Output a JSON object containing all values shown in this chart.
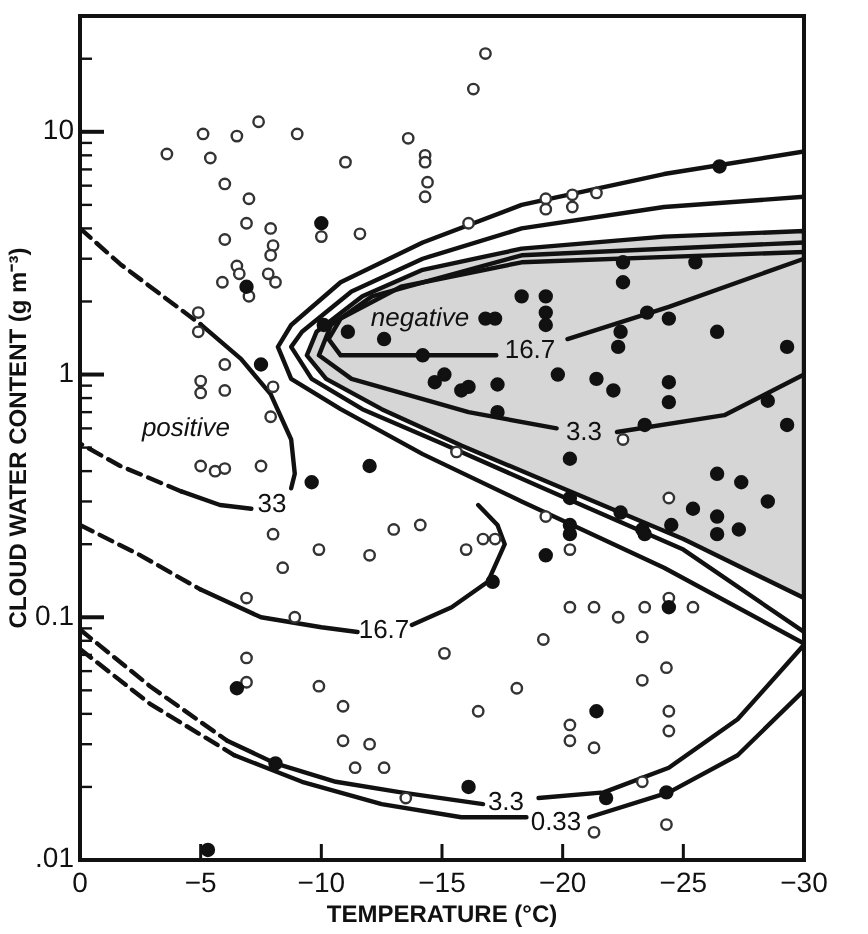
{
  "chart_data": {
    "type": "scatter",
    "xlabel": "TEMPERATURE (°C)",
    "ylabel": "CLOUD WATER CONTENT (g m⁻³)",
    "log": "y",
    "xlim": [
      0,
      -30
    ],
    "ylim": [
      0.01,
      30
    ],
    "xticks": [
      0,
      {
        "value": -5,
        "label": "−5"
      },
      {
        "value": -10,
        "label": "−10"
      },
      {
        "value": -15,
        "label": "−15"
      },
      {
        "value": -20,
        "label": "−20"
      },
      {
        "value": -25,
        "label": "−25"
      },
      {
        "value": -30,
        "label": "−30"
      }
    ],
    "yticks": [
      {
        "value": 0.01,
        "label": ".01"
      },
      {
        "value": 0.02,
        "label": null
      },
      {
        "value": 0.03,
        "label": null
      },
      {
        "value": 0.04,
        "label": null
      },
      {
        "value": 0.05,
        "label": null
      },
      {
        "value": 0.06,
        "label": null
      },
      {
        "value": 0.07,
        "label": null
      },
      {
        "value": 0.08,
        "label": null
      },
      {
        "value": 0.09,
        "label": null
      },
      {
        "value": 0.1,
        "label": "0.1"
      },
      {
        "value": 0.2,
        "label": null
      },
      {
        "value": 0.3,
        "label": null
      },
      {
        "value": 0.4,
        "label": null
      },
      {
        "value": 0.5,
        "label": null
      },
      {
        "value": 0.6,
        "label": null
      },
      {
        "value": 0.7,
        "label": null
      },
      {
        "value": 0.8,
        "label": null
      },
      {
        "value": 0.9,
        "label": null
      },
      1,
      {
        "value": 2,
        "label": null
      },
      {
        "value": 3,
        "label": null
      },
      {
        "value": 4,
        "label": null
      },
      {
        "value": 5,
        "label": null
      },
      {
        "value": 6,
        "label": null
      },
      {
        "value": 7,
        "label": null
      },
      {
        "value": 8,
        "label": null
      },
      {
        "value": 9,
        "label": null
      },
      10,
      {
        "value": 20,
        "label": null
      }
    ],
    "series": [
      {
        "type": "area",
        "color": "#d6d6d6",
        "x": [
          -30,
          -24.2,
          -18.3,
          -14.2,
          -11.7,
          -9.8,
          -9.4,
          -10.2,
          -12.5,
          -15.8,
          -20,
          -25,
          -30
        ],
        "values": [
          3.9,
          3.7,
          3.3,
          2.7,
          2.1,
          1.5,
          1.2,
          0.96,
          0.72,
          0.51,
          0.34,
          0.21,
          0.12
        ]
      },
      {
        "type": "line",
        "color": "#111111",
        "line_style": "solid",
        "x": [
          -30,
          -24.2,
          -18.3,
          -14.2,
          -10.8,
          -8.75,
          -8.2,
          -8.75,
          -10.8,
          -14.2,
          -18.3,
          -24.2,
          -30
        ],
        "values": [
          8.3,
          6.7,
          5.0,
          3.5,
          2.4,
          1.6,
          1.3,
          0.96,
          0.72,
          0.47,
          0.3,
          0.16,
          0.078
        ]
      },
      {
        "type": "line",
        "color": "#111111",
        "line_style": "solid",
        "x": [
          -30,
          -24.2,
          -18.3,
          -14.2,
          -11.25,
          -9.2,
          -8.75,
          -9.6,
          -11.7,
          -15,
          -19.2,
          -25,
          -30
        ],
        "values": [
          5.4,
          4.9,
          4.0,
          3.0,
          2.2,
          1.5,
          1.3,
          0.96,
          0.72,
          0.52,
          0.34,
          0.19,
          0.087
        ]
      },
      {
        "type": "line",
        "color": "#111111",
        "line_style": "solid",
        "x": [
          -30,
          -18.3,
          -12.1,
          -10.4,
          -9.9,
          -11.25,
          -13.3,
          -16.1,
          -19.75
        ],
        "values": [
          3.5,
          3.1,
          2.1,
          1.6,
          1.2,
          0.96,
          0.84,
          0.7,
          0.6
        ]
      },
      {
        "type": "line",
        "color": "#111111",
        "line_style": "solid",
        "x": [
          -22.25,
          -26.7,
          -30
        ],
        "values": [
          0.58,
          0.68,
          1.0
        ]
      },
      {
        "type": "line",
        "color": "#111111",
        "line_style": "solid",
        "x": [
          -30,
          -18.3,
          -13.3,
          -10.8,
          -10.3,
          -10.8,
          -13.3,
          -17.25
        ],
        "values": [
          3.2,
          2.9,
          2.3,
          1.7,
          1.4,
          1.2,
          1.2,
          1.2
        ]
      },
      {
        "type": "line",
        "color": "#111111",
        "line_style": "solid",
        "x": [
          -20.2,
          -24.4,
          -30
        ],
        "values": [
          1.4,
          1.9,
          3.0
        ]
      },
      {
        "type": "line",
        "color": "#111111",
        "line_style": "dashed",
        "x": [
          0,
          -1.67,
          -3.33,
          -5
        ],
        "values": [
          4.0,
          2.85,
          2.14,
          1.61
        ]
      },
      {
        "type": "line",
        "color": "#111111",
        "line_style": "solid",
        "x": [
          -5,
          -6.67,
          -7.9,
          -8.75,
          -8.9,
          -8.75
        ],
        "values": [
          1.61,
          1.16,
          0.83,
          0.54,
          0.39,
          0.34
        ]
      },
      {
        "type": "line",
        "color": "#111111",
        "line_style": "solid",
        "x": [
          -7.1,
          -5.8,
          -4.2
        ],
        "values": [
          0.28,
          0.29,
          0.33
        ]
      },
      {
        "type": "line",
        "color": "#111111",
        "line_style": "dashed",
        "x": [
          -4.2,
          -1.67,
          0
        ],
        "values": [
          0.33,
          0.42,
          0.52
        ]
      },
      {
        "type": "line",
        "color": "#111111",
        "line_style": "dashed",
        "x": [
          0,
          -2.5,
          -5
        ],
        "values": [
          0.24,
          0.18,
          0.13
        ]
      },
      {
        "type": "line",
        "color": "#111111",
        "line_style": "solid",
        "x": [
          -5,
          -7.5,
          -10,
          -11.5
        ],
        "values": [
          0.13,
          0.1,
          0.091,
          0.087
        ]
      },
      {
        "type": "line",
        "color": "#111111",
        "line_style": "solid",
        "x": [
          -13.75,
          -15.4,
          -16.9,
          -17.6,
          -17.3,
          -16.5
        ],
        "values": [
          0.093,
          0.11,
          0.14,
          0.2,
          0.24,
          0.29
        ]
      },
      {
        "type": "line",
        "color": "#111111",
        "line_style": "dashed",
        "x": [
          0,
          -2.9,
          -6.1
        ],
        "values": [
          0.089,
          0.052,
          0.031
        ]
      },
      {
        "type": "line",
        "color": "#111111",
        "line_style": "solid",
        "x": [
          -6.1,
          -8.1,
          -10.6,
          -13.3,
          -16.7
        ],
        "values": [
          0.031,
          0.025,
          0.021,
          0.019,
          0.017
        ]
      },
      {
        "type": "line",
        "color": "#111111",
        "line_style": "solid",
        "x": [
          -19,
          -21.7,
          -24.4,
          -27.25,
          -30
        ],
        "values": [
          0.018,
          0.019,
          0.024,
          0.038,
          0.077
        ]
      },
      {
        "type": "line",
        "color": "#111111",
        "line_style": "dashed",
        "x": [
          0,
          -2.9,
          -6.4
        ],
        "values": [
          0.074,
          0.044,
          0.027
        ]
      },
      {
        "type": "line",
        "color": "#111111",
        "line_style": "solid",
        "x": [
          -6.4,
          -9.2,
          -12.5,
          -15.8,
          -18.5
        ],
        "values": [
          0.027,
          0.021,
          0.017,
          0.015,
          0.015
        ]
      },
      {
        "type": "line",
        "color": "#111111",
        "line_style": "solid",
        "x": [
          -21.1,
          -24.4,
          -27.25,
          -30
        ],
        "values": [
          0.015,
          0.019,
          0.027,
          0.05
        ]
      },
      {
        "color": "#333333",
        "marker": "circle",
        "x": [
          -3.6,
          -5.1,
          -6.5,
          -7.4,
          -9,
          -5.4,
          -6,
          -7,
          -6.9,
          -7.9,
          -6,
          -8,
          -7.9,
          -6.5,
          -5.9,
          -6.6,
          -7.8,
          -8.1,
          -7,
          -11,
          -10,
          -11.6,
          -4.9,
          -4.9,
          -6,
          -5,
          -5,
          -6,
          -8,
          -7.9,
          -5,
          -5.6,
          -6,
          -7.5,
          -16.8,
          -16.3,
          -13.6,
          -14.3,
          -14.3,
          -14.4,
          -14.3,
          -19.3,
          -19.3,
          -20.4,
          -20.4,
          -21.4,
          -16.1,
          -22.5,
          -15.6,
          -14.1,
          -16,
          -16.7,
          -17.2,
          -19.3,
          -24.4,
          -20.3,
          -24.4,
          -25.4,
          -20.3,
          -21.3,
          -22.3,
          -23.4,
          -19.2,
          -23.3,
          -15.1,
          -24.3,
          -23.3,
          -18.1,
          -16.5,
          -24.4,
          -24.4,
          -20.3,
          -20.3,
          -21.3,
          -23.3,
          -21.3,
          -24.3,
          -8,
          -8.4,
          -9.9,
          -12,
          -13,
          -6.9,
          -8.9,
          -6.9,
          -6.9,
          -9.9,
          -10.9,
          -10.9,
          -12,
          -11.4,
          -12.6,
          -13.5
        ],
        "values": [
          8.1,
          9.8,
          9.6,
          11,
          9.8,
          7.8,
          6.1,
          5.3,
          4.2,
          4.0,
          3.6,
          3.4,
          3.1,
          2.8,
          2.4,
          2.6,
          2.6,
          2.4,
          2.1,
          7.5,
          3.7,
          3.8,
          1.8,
          1.5,
          1.1,
          0.94,
          0.84,
          0.86,
          0.89,
          0.67,
          0.42,
          0.4,
          0.41,
          0.42,
          21,
          15,
          9.4,
          8.0,
          7.5,
          6.2,
          5.4,
          5.3,
          4.8,
          5.5,
          4.9,
          5.6,
          4.2,
          0.54,
          0.48,
          0.24,
          0.19,
          0.21,
          0.21,
          0.26,
          0.31,
          0.19,
          0.12,
          0.11,
          0.11,
          0.11,
          0.1,
          0.11,
          0.081,
          0.083,
          0.071,
          0.062,
          0.055,
          0.051,
          0.041,
          0.041,
          0.034,
          0.036,
          0.031,
          0.029,
          0.021,
          0.013,
          0.014,
          0.22,
          0.16,
          0.19,
          0.18,
          0.23,
          0.12,
          0.1,
          0.068,
          0.054,
          0.052,
          0.043,
          0.031,
          0.03,
          0.024,
          0.024,
          0.018
        ]
      },
      {
        "color": "#111111",
        "marker": "circle",
        "x": [
          -6.9,
          -10,
          -7.5,
          -26.5,
          -25.5,
          -22.5,
          -22.5,
          -18.3,
          -19.3,
          -19.3,
          -19.3,
          -16.8,
          -17.2,
          -23.5,
          -24.4,
          -26.4,
          -22.4,
          -22.3,
          -29.3,
          -19.8,
          -21.4,
          -22.1,
          -24.4,
          -24.4,
          -14.7,
          -15.1,
          -15.8,
          -16.1,
          -17.3,
          -17.3,
          -14.2,
          -28.5,
          -29.3,
          -20.3,
          -23.4,
          -11.1,
          -12.6,
          -10.1,
          -26.4,
          -27.4,
          -28.5,
          -25.4,
          -26.4,
          -26.4,
          -27.3,
          -24.5,
          -22.4,
          -23.3,
          -23.4,
          -20.3,
          -20.3,
          -20.3,
          -19.3,
          -24.4,
          -17.1,
          -21.4,
          -16.1,
          -24.3,
          -21.8,
          -9.6,
          -12,
          -6.5,
          -8.1,
          -5.3
        ],
        "values": [
          2.3,
          4.2,
          1.1,
          7.2,
          2.9,
          2.9,
          2.4,
          2.1,
          2.1,
          1.8,
          1.6,
          1.7,
          1.7,
          1.8,
          1.7,
          1.5,
          1.5,
          1.3,
          1.3,
          1.0,
          0.96,
          0.86,
          0.93,
          0.77,
          0.93,
          1.0,
          0.86,
          0.89,
          0.91,
          0.7,
          1.2,
          0.78,
          0.62,
          0.45,
          0.62,
          1.5,
          1.4,
          1.6,
          0.39,
          0.36,
          0.3,
          0.28,
          0.26,
          0.22,
          0.23,
          0.24,
          0.27,
          0.23,
          0.22,
          0.31,
          0.24,
          0.22,
          0.18,
          0.11,
          0.14,
          0.041,
          0.02,
          0.019,
          0.018,
          0.36,
          0.42,
          0.051,
          0.025,
          0.011
        ]
      }
    ],
    "annotations": [
      "negative",
      "positive",
      "33",
      "16.7",
      "16.7",
      "3.3",
      "3.3",
      "0.33"
    ]
  }
}
